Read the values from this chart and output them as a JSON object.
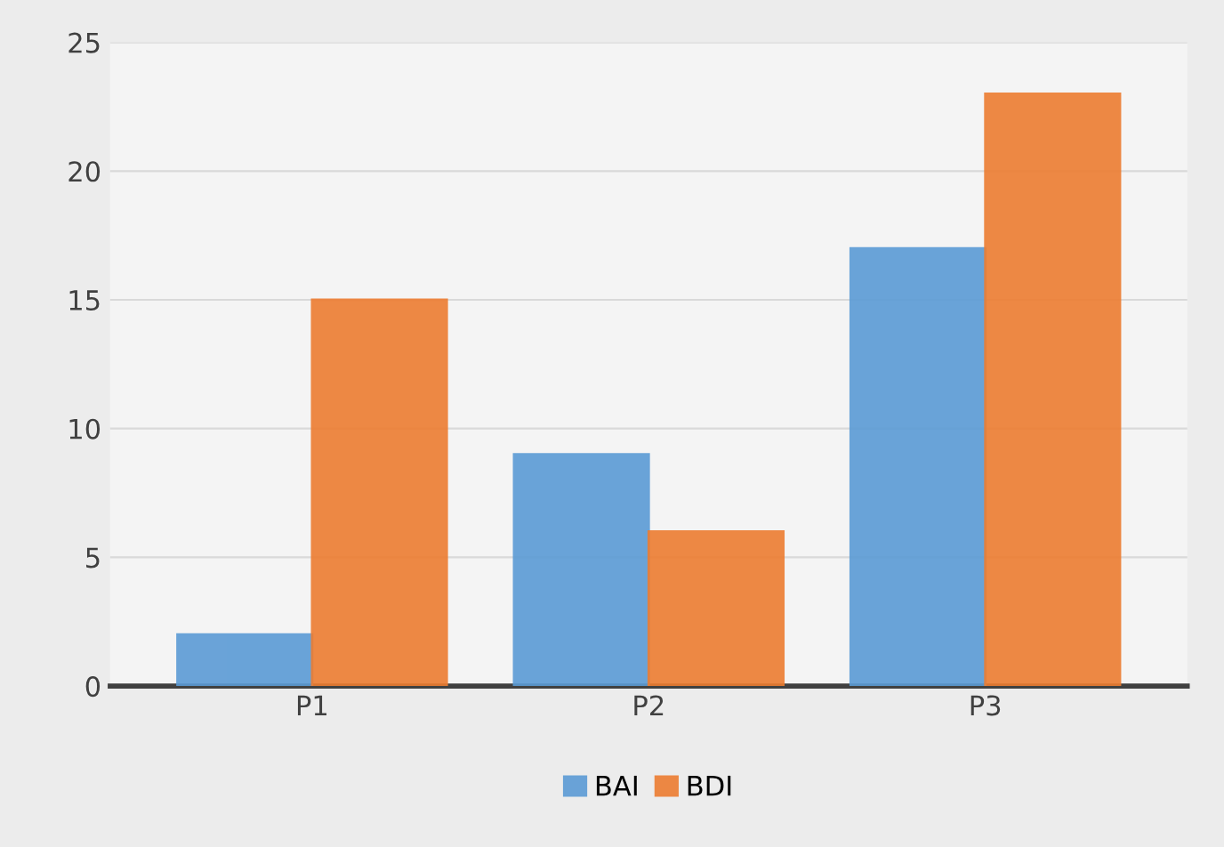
{
  "chart_data": {
    "type": "bar",
    "categories": [
      "P1",
      "P2",
      "P3"
    ],
    "series": [
      {
        "name": "BAI",
        "color": "#5b9bd5",
        "values": [
          2,
          9,
          17
        ]
      },
      {
        "name": "BDI",
        "color": "#ed7d31",
        "values": [
          15,
          6,
          23
        ]
      }
    ],
    "ylim": [
      0,
      25
    ],
    "yticks": [
      0,
      5,
      10,
      15,
      20,
      25
    ],
    "grid": "y",
    "legend": "bottom"
  }
}
